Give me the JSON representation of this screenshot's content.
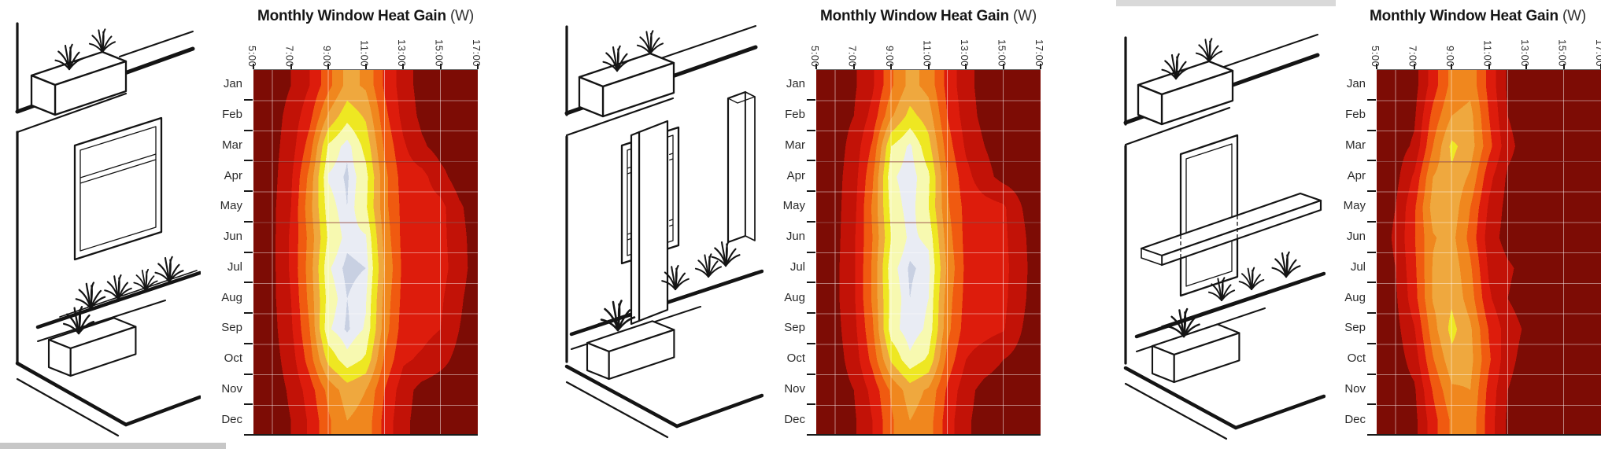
{
  "shared": {
    "title_main": "Monthly Window Heat Gain",
    "title_unit": "(W)",
    "months": [
      "Jan",
      "Feb",
      "Mar",
      "Apr",
      "May",
      "Jun",
      "Jul",
      "Aug",
      "Sep",
      "Oct",
      "Nov",
      "Dec"
    ],
    "hour_tick_labels": [
      "5:00",
      "7:00",
      "9:00",
      "11:00",
      "13:00",
      "15:00",
      "17:00"
    ],
    "hour_range": [
      5,
      17
    ],
    "gridline_hours": [
      6,
      9,
      12,
      15
    ],
    "gridline_color_vertical": "rgba(255,255,255,0.5)",
    "gridline_color_horizontal": "rgba(255,255,255,0.45)",
    "axis_color": "#1a1a1a",
    "color_scale": [
      "#7d0c05",
      "#c21207",
      "#dd1c0c",
      "#f05a10",
      "#f0871e",
      "#efa83e",
      "#eee722",
      "#f7f9b0",
      "#e9ecf4",
      "#c8d0e2"
    ],
    "color_thresholds": [
      10,
      22,
      34,
      46,
      58,
      70,
      82,
      92,
      97
    ],
    "value_scale_note": "relative intensity 0-100 (figure shows no numeric colorbar)",
    "artifacts": [
      "cropped-grey-strip-top",
      "cropped-grey-strip-bottom-left"
    ]
  },
  "panels": [
    {
      "sketch": "bare-window"
    },
    {
      "sketch": "vertical-fins"
    },
    {
      "sketch": "horizontal-light-shelf"
    }
  ],
  "chart_data": [
    {
      "type": "heatmap",
      "title": "Monthly Window Heat Gain (W)",
      "variant": "bare-window",
      "x_hours": [
        5,
        6,
        7,
        8,
        9,
        10,
        11,
        12,
        13,
        14,
        15,
        16,
        17
      ],
      "y_months": [
        "Jan",
        "Feb",
        "Mar",
        "Apr",
        "May",
        "Jun",
        "Jul",
        "Aug",
        "Sep",
        "Oct",
        "Nov",
        "Dec"
      ],
      "dark_boundary_rows": [
        3,
        5
      ],
      "values": [
        [
          3,
          4,
          10,
          22,
          42,
          62,
          56,
          32,
          16,
          5,
          3,
          3,
          3
        ],
        [
          3,
          5,
          14,
          30,
          60,
          78,
          68,
          38,
          18,
          7,
          3,
          3,
          3
        ],
        [
          3,
          6,
          16,
          40,
          84,
          96,
          78,
          44,
          24,
          12,
          5,
          3,
          3
        ],
        [
          3,
          6,
          20,
          50,
          93,
          98,
          86,
          50,
          28,
          26,
          14,
          4,
          3
        ],
        [
          3,
          7,
          22,
          54,
          88,
          97,
          84,
          50,
          30,
          28,
          26,
          12,
          3
        ],
        [
          3,
          7,
          24,
          50,
          84,
          95,
          93,
          54,
          30,
          28,
          26,
          14,
          4
        ],
        [
          3,
          7,
          24,
          52,
          91,
          99,
          97,
          58,
          31,
          29,
          27,
          15,
          4
        ],
        [
          3,
          7,
          22,
          50,
          87,
          97,
          93,
          54,
          30,
          28,
          24,
          12,
          3
        ],
        [
          3,
          6,
          20,
          46,
          91,
          98,
          91,
          52,
          28,
          26,
          22,
          10,
          3
        ],
        [
          3,
          5,
          16,
          40,
          74,
          89,
          80,
          44,
          24,
          20,
          14,
          6,
          3
        ],
        [
          3,
          4,
          12,
          28,
          50,
          64,
          58,
          34,
          15,
          6,
          3,
          3,
          3
        ],
        [
          3,
          4,
          10,
          24,
          44,
          58,
          54,
          30,
          13,
          5,
          3,
          3,
          3
        ]
      ]
    },
    {
      "type": "heatmap",
      "title": "Monthly Window Heat Gain (W)",
      "variant": "vertical-fins",
      "x_hours": [
        5,
        6,
        7,
        8,
        9,
        10,
        11,
        12,
        13,
        14,
        15,
        16,
        17
      ],
      "y_months": [
        "Jan",
        "Feb",
        "Mar",
        "Apr",
        "May",
        "Jun",
        "Jul",
        "Aug",
        "Sep",
        "Oct",
        "Nov",
        "Dec"
      ],
      "dark_boundary_rows": [
        3,
        5
      ],
      "values": [
        [
          3,
          4,
          8,
          20,
          44,
          62,
          54,
          30,
          14,
          5,
          3,
          3,
          3
        ],
        [
          3,
          5,
          10,
          26,
          56,
          74,
          64,
          34,
          16,
          6,
          3,
          3,
          3
        ],
        [
          3,
          5,
          14,
          36,
          82,
          94,
          74,
          40,
          20,
          10,
          4,
          3,
          3
        ],
        [
          3,
          6,
          16,
          44,
          90,
          97,
          84,
          46,
          26,
          14,
          6,
          3,
          3
        ],
        [
          3,
          6,
          18,
          48,
          86,
          96,
          82,
          48,
          30,
          27,
          24,
          10,
          3
        ],
        [
          3,
          6,
          20,
          46,
          82,
          94,
          90,
          52,
          30,
          28,
          25,
          12,
          3
        ],
        [
          3,
          7,
          20,
          48,
          89,
          98,
          95,
          56,
          31,
          28,
          26,
          13,
          3
        ],
        [
          3,
          7,
          20,
          48,
          86,
          97,
          92,
          52,
          30,
          28,
          25,
          12,
          3
        ],
        [
          3,
          6,
          18,
          44,
          88,
          97,
          90,
          50,
          28,
          26,
          23,
          10,
          3
        ],
        [
          3,
          5,
          15,
          38,
          72,
          90,
          80,
          42,
          22,
          16,
          10,
          5,
          3
        ],
        [
          3,
          4,
          10,
          26,
          48,
          64,
          56,
          32,
          14,
          6,
          3,
          3,
          3
        ],
        [
          3,
          4,
          8,
          22,
          44,
          58,
          52,
          28,
          12,
          5,
          3,
          3,
          3
        ]
      ]
    },
    {
      "type": "heatmap",
      "title": "Monthly Window Heat Gain (W)",
      "variant": "horizontal-light-shelf",
      "x_hours": [
        5,
        6,
        7,
        8,
        9,
        10,
        11,
        12,
        13,
        14,
        15,
        16,
        17
      ],
      "y_months": [
        "Jan",
        "Feb",
        "Mar",
        "Apr",
        "May",
        "Jun",
        "Jul",
        "Aug",
        "Sep",
        "Oct",
        "Nov",
        "Dec"
      ],
      "dark_boundary_rows": [
        3
      ],
      "values": [
        [
          3,
          3,
          5,
          28,
          50,
          54,
          30,
          8,
          3,
          3,
          3,
          3,
          3
        ],
        [
          3,
          3,
          8,
          38,
          58,
          62,
          34,
          10,
          3,
          3,
          3,
          3,
          3
        ],
        [
          3,
          4,
          12,
          46,
          73,
          64,
          38,
          14,
          4,
          3,
          3,
          3,
          3
        ],
        [
          3,
          6,
          24,
          58,
          68,
          56,
          26,
          8,
          3,
          3,
          3,
          3,
          3
        ],
        [
          3,
          10,
          32,
          63,
          66,
          46,
          20,
          6,
          3,
          3,
          3,
          3,
          3
        ],
        [
          3,
          12,
          33,
          57,
          62,
          42,
          16,
          5,
          3,
          3,
          3,
          3,
          3
        ],
        [
          3,
          10,
          31,
          59,
          66,
          48,
          20,
          12,
          6,
          3,
          3,
          3,
          3
        ],
        [
          3,
          8,
          29,
          59,
          68,
          52,
          24,
          10,
          4,
          3,
          3,
          3,
          3
        ],
        [
          3,
          6,
          21,
          53,
          74,
          60,
          33,
          16,
          8,
          3,
          3,
          3,
          3
        ],
        [
          3,
          4,
          15,
          45,
          66,
          62,
          36,
          14,
          5,
          3,
          3,
          3,
          3
        ],
        [
          3,
          3,
          8,
          35,
          56,
          58,
          30,
          10,
          3,
          3,
          3,
          3,
          3
        ],
        [
          3,
          3,
          6,
          29,
          48,
          54,
          28,
          8,
          3,
          3,
          3,
          3,
          3
        ]
      ]
    }
  ]
}
